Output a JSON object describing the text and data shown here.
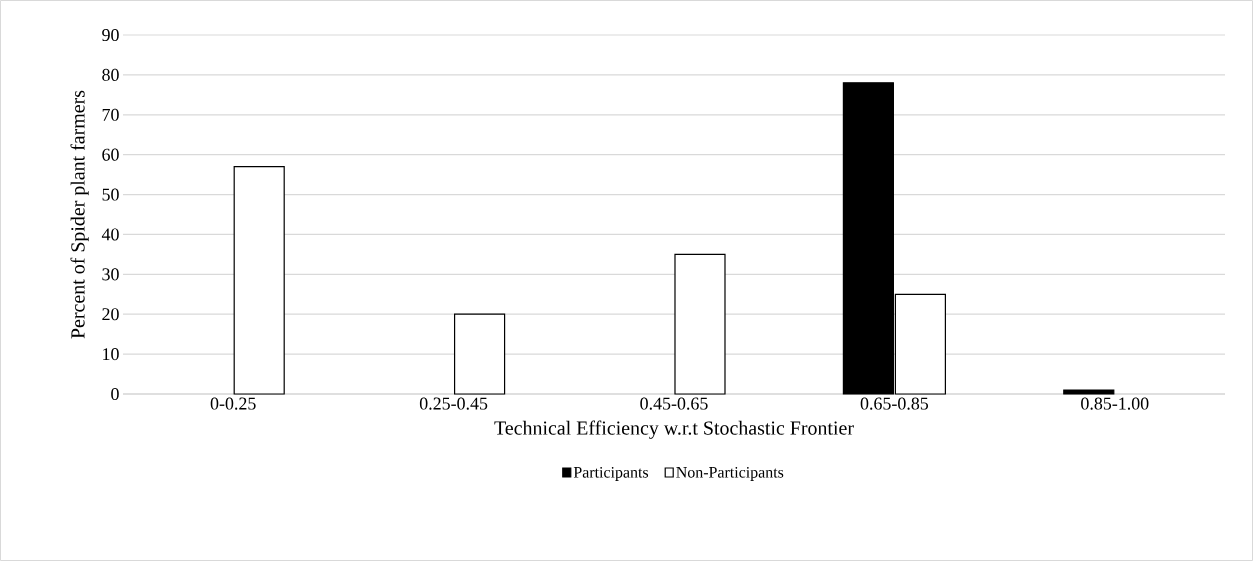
{
  "chart_data": {
    "type": "bar",
    "xlabel": "Technical Efficiency w.r.t Stochastic Frontier",
    "ylabel": "Percent of Spider plant farmers",
    "categories": [
      "0-0.25",
      "0.25-0.45",
      "0.45-0.65",
      "0.65-0.85",
      "0.85-1.00"
    ],
    "series": [
      {
        "name": "Participants",
        "color": "#000000",
        "values": [
          null,
          null,
          null,
          78,
          1
        ]
      },
      {
        "name": "Non-Participants",
        "color": "#ffffff",
        "values": [
          57,
          20,
          35,
          25,
          null
        ]
      }
    ],
    "ylim": [
      0,
      90
    ],
    "yticks": [
      0,
      10,
      20,
      30,
      40,
      50,
      60,
      70,
      80,
      90
    ],
    "grid": "y",
    "legend": "bottom"
  }
}
